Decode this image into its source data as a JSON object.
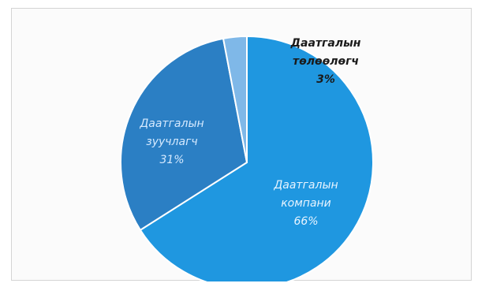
{
  "chart_data": {
    "type": "pie",
    "slices": [
      {
        "name": "Даатгалын компани",
        "value": 66,
        "label_lines": [
          "Даатгалын",
          "компани",
          "66%"
        ],
        "color": "#1f97e0",
        "label_color": "#e8f4ff"
      },
      {
        "name": "Даатгалын зуучлагч",
        "value": 31,
        "label_lines": [
          "Даатгалын",
          "зуучлагч",
          "31%"
        ],
        "color": "#2b7fc4",
        "label_color": "#d6eaff"
      },
      {
        "name": "Даатгалын төлөөлөгч",
        "value": 3,
        "label_lines": [
          "Даатгалын",
          "төлөөлөгч",
          "3%"
        ],
        "color": "#7fb8e8",
        "label_color": "#1a1a1a"
      }
    ],
    "start_angle_deg": 0,
    "direction": "clockwise"
  }
}
